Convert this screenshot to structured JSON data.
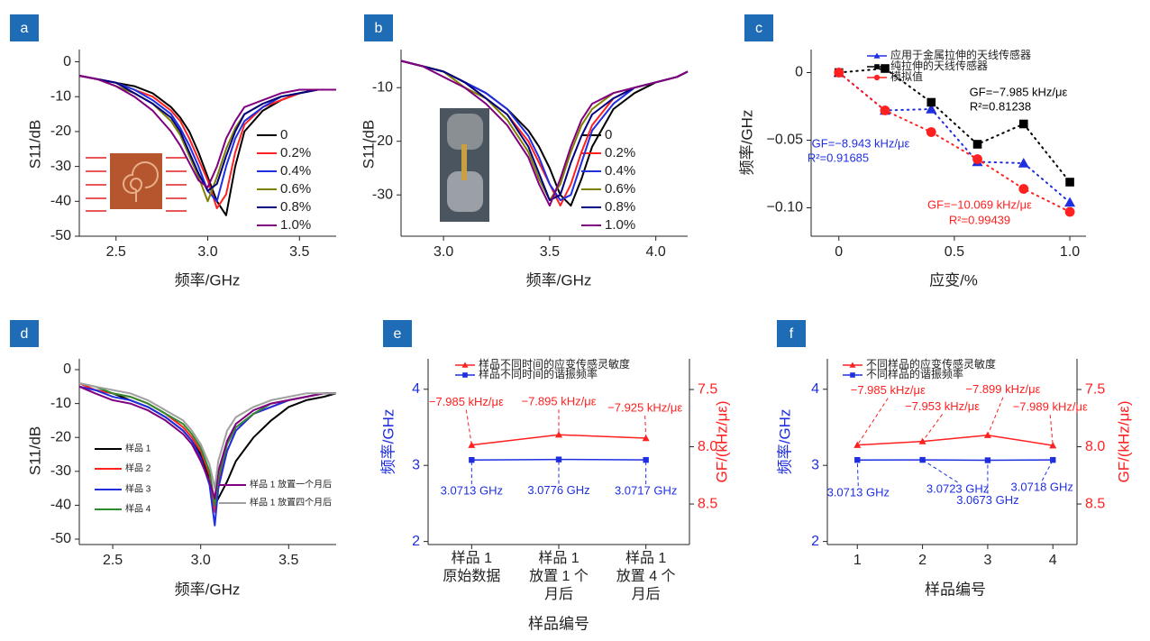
{
  "chart_data": [
    {
      "type": "line",
      "label": "a",
      "xlabel": "频率/GHz",
      "ylabel": "S11/dB",
      "x": [
        2.3,
        2.4,
        2.5,
        2.6,
        2.7,
        2.8,
        2.85,
        2.9,
        2.95,
        3.0,
        3.05,
        3.1,
        3.15,
        3.2,
        3.3,
        3.4,
        3.5,
        3.6,
        3.7
      ],
      "xlim": [
        2.3,
        3.7
      ],
      "ylim": [
        -50,
        3.5
      ],
      "xticks": [
        2.5,
        {
          "value": 3,
          "label": "3.0"
        },
        3.5
      ],
      "yticks": [
        0,
        -10,
        -20,
        -30,
        -40,
        -50
      ],
      "series": [
        {
          "name": "0",
          "color": "#000000",
          "values": [
            -4,
            -5,
            -6,
            -7,
            -9,
            -13,
            -16,
            -20,
            -26,
            -33,
            -40,
            -44,
            -30,
            -20,
            -14,
            -11,
            -9,
            -8,
            -8
          ]
        },
        {
          "name": "0.2%",
          "color": "#ff2020",
          "values": [
            -4,
            -5,
            -6,
            -8,
            -10,
            -14,
            -17,
            -22,
            -28,
            -34,
            -42,
            -38,
            -26,
            -18,
            -13,
            -11,
            -9,
            -8,
            -8
          ]
        },
        {
          "name": "0.4%",
          "color": "#1f2fe0",
          "values": [
            -4,
            -5,
            -6,
            -8,
            -11,
            -15,
            -19,
            -24,
            -30,
            -37,
            -40,
            -30,
            -22,
            -17,
            -13,
            -10,
            -9,
            -8,
            -8
          ]
        },
        {
          "name": "0.6%",
          "color": "#808000",
          "values": [
            -4,
            -5,
            -7,
            -9,
            -12,
            -17,
            -21,
            -27,
            -33,
            -40,
            -33,
            -25,
            -19,
            -15,
            -12,
            -10,
            -9,
            -8,
            -8
          ]
        },
        {
          "name": "0.8%",
          "color": "#000080",
          "values": [
            -4,
            -5,
            -6,
            -9,
            -12,
            -16,
            -20,
            -26,
            -32,
            -37,
            -35,
            -27,
            -20,
            -15,
            -12,
            -10,
            -9,
            -8,
            -8
          ]
        },
        {
          "name": "1.0%",
          "color": "#800080",
          "values": [
            -4,
            -5,
            -7,
            -10,
            -14,
            -20,
            -24,
            -29,
            -34,
            -36,
            -30,
            -22,
            -17,
            -13,
            -11,
            -9,
            -8,
            -8,
            -8
          ]
        }
      ]
    },
    {
      "type": "line",
      "label": "b",
      "xlabel": "频率/GHz",
      "ylabel": "S11/dB",
      "x": [
        2.8,
        2.9,
        3.0,
        3.1,
        3.2,
        3.3,
        3.4,
        3.45,
        3.5,
        3.55,
        3.6,
        3.65,
        3.7,
        3.8,
        3.9,
        4.0,
        4.1,
        4.15
      ],
      "xlim": [
        2.8,
        4.15
      ],
      "ylim": [
        -37.7,
        -2.9
      ],
      "xticks": [
        {
          "value": 3,
          "label": "3.0"
        },
        3.5,
        {
          "value": 4,
          "label": "4.0"
        }
      ],
      "yticks": [
        -10,
        -20,
        -30
      ],
      "series": [
        {
          "name": "0",
          "color": "#000000",
          "values": [
            -5,
            -6,
            -7,
            -9,
            -11,
            -14,
            -18,
            -21,
            -25,
            -30,
            -32,
            -27,
            -21,
            -14,
            -11,
            -9,
            -8,
            -7
          ]
        },
        {
          "name": "0.2%",
          "color": "#ff2020",
          "values": [
            -5,
            -6,
            -7,
            -9,
            -12,
            -15,
            -20,
            -24,
            -28,
            -32,
            -28,
            -22,
            -17,
            -12,
            -10,
            -9,
            -8,
            -7
          ]
        },
        {
          "name": "0.4%",
          "color": "#1f2fe0",
          "values": [
            -5,
            -6,
            -7,
            -9,
            -11,
            -14,
            -19,
            -23,
            -28,
            -31,
            -30,
            -24,
            -18,
            -13,
            -10,
            -9,
            -8,
            -7
          ]
        },
        {
          "name": "0.6%",
          "color": "#808000",
          "values": [
            -5,
            -6,
            -7,
            -10,
            -12,
            -16,
            -22,
            -27,
            -31,
            -28,
            -22,
            -17,
            -14,
            -11,
            -10,
            -9,
            -8,
            -7
          ]
        },
        {
          "name": "0.8%",
          "color": "#000080",
          "values": [
            -5,
            -6,
            -7,
            -9,
            -12,
            -15,
            -21,
            -26,
            -31,
            -30,
            -24,
            -19,
            -15,
            -12,
            -10,
            -9,
            -8,
            -7
          ]
        },
        {
          "name": "1.0%",
          "color": "#800080",
          "values": [
            -5,
            -6,
            -8,
            -10,
            -13,
            -17,
            -23,
            -28,
            -32,
            -27,
            -21,
            -16,
            -13,
            -11,
            -10,
            -9,
            -8,
            -7
          ]
        }
      ]
    },
    {
      "type": "scatter",
      "label": "c",
      "xlabel": "应变/%",
      "ylabel": "频率/GHz",
      "x": [
        0,
        0.2,
        0.4,
        0.6,
        0.8,
        1.0
      ],
      "xlim": [
        -0.12,
        1.07
      ],
      "ylim": [
        -0.121,
        0.017
      ],
      "xticks": [
        0,
        0.5,
        {
          "value": 1,
          "label": "1.0"
        }
      ],
      "yticks": [
        0,
        {
          "value": -0.05,
          "label": "−0.05"
        },
        {
          "value": -0.1,
          "label": "−0.10"
        }
      ],
      "series": [
        {
          "name": "应用于金属拉伸的天线传感器",
          "color": "#1f2fe0",
          "marker": "triangle",
          "linestyle": "dotted",
          "values": [
            0,
            -0.028,
            -0.027,
            -0.066,
            -0.067,
            -0.096
          ]
        },
        {
          "name": "纯拉伸的天线传感器",
          "color": "#000000",
          "marker": "square",
          "linestyle": "dotted",
          "values": [
            0,
            0.003,
            -0.022,
            -0.053,
            -0.038,
            -0.081
          ]
        },
        {
          "name": "模拟值",
          "color": "#ff2020",
          "marker": "circle",
          "linestyle": "dotted",
          "values": [
            0,
            -0.028,
            -0.044,
            -0.064,
            -0.086,
            -0.103
          ]
        }
      ],
      "annotations": [
        {
          "text": "GF=−7.985 kHz/με",
          "color": "#000000"
        },
        {
          "text": "R²=0.81238",
          "color": "#000000"
        },
        {
          "text": "GF=−8.943 kHz/με",
          "color": "#1f2fe0"
        },
        {
          "text": "R²=0.91685",
          "color": "#1f2fe0"
        },
        {
          "text": "GF=−10.069 kHz/με",
          "color": "#ff2020"
        },
        {
          "text": "R²=0.99439",
          "color": "#ff2020"
        }
      ]
    },
    {
      "type": "line",
      "label": "d",
      "xlabel": "频率/GHz",
      "ylabel": "S11/dB",
      "x": [
        2.31,
        2.4,
        2.5,
        2.6,
        2.7,
        2.8,
        2.9,
        2.95,
        3.0,
        3.05,
        3.08,
        3.1,
        3.15,
        3.2,
        3.3,
        3.4,
        3.5,
        3.6,
        3.7,
        3.77
      ],
      "xlim": [
        2.31,
        3.77
      ],
      "ylim": [
        -51.6,
        3.2
      ],
      "xticks": [
        2.5,
        {
          "value": 3,
          "label": "3.0"
        },
        3.5
      ],
      "yticks": [
        0,
        -10,
        -20,
        -30,
        -40,
        -50
      ],
      "series": [
        {
          "name": "样品 1",
          "color": "#000000",
          "values": [
            -5,
            -6,
            -7,
            -9,
            -11,
            -14,
            -18,
            -21,
            -25,
            -32,
            -40,
            -38,
            -33,
            -27,
            -20,
            -15,
            -11,
            -9,
            -8,
            -7
          ]
        },
        {
          "name": "样品 2",
          "color": "#ff2020",
          "values": [
            -4,
            -6,
            -7,
            -8,
            -10,
            -13,
            -17,
            -20,
            -24,
            -31,
            -42,
            -33,
            -24,
            -18,
            -13,
            -11,
            -9,
            -8,
            -7,
            -7
          ]
        },
        {
          "name": "样品 3",
          "color": "#1f2fe0",
          "values": [
            -5,
            -6,
            -8,
            -9,
            -11,
            -14,
            -18,
            -21,
            -26,
            -34,
            -46,
            -35,
            -24,
            -18,
            -13,
            -11,
            -9,
            -8,
            -7,
            -7
          ]
        },
        {
          "name": "样品 4",
          "color": "#2e8b2e",
          "values": [
            -4,
            -5,
            -7,
            -8,
            -10,
            -13,
            -16,
            -19,
            -23,
            -30,
            -40,
            -32,
            -22,
            -17,
            -13,
            -10,
            -9,
            -8,
            -7,
            -7
          ]
        },
        {
          "name": "样品 1 放置一个月后",
          "color": "#800080",
          "values": [
            -5,
            -7,
            -9,
            -10,
            -12,
            -15,
            -19,
            -22,
            -27,
            -33,
            -38,
            -30,
            -21,
            -16,
            -12,
            -10,
            -9,
            -8,
            -7,
            -7
          ]
        },
        {
          "name": "样品 1 放置四个月后",
          "color": "#a0a0a0",
          "values": [
            -4,
            -5,
            -6,
            -7,
            -9,
            -12,
            -15,
            -18,
            -22,
            -28,
            -35,
            -27,
            -18,
            -14,
            -11,
            -9,
            -8,
            -7,
            -7,
            -7
          ]
        }
      ]
    },
    {
      "type": "line",
      "label": "e",
      "xlabel": "样品编号",
      "ylabel": "频率/GHz",
      "y2label": "GF/(kHz/με)",
      "ycolor": "#1f2fe0",
      "y2color": "#ff2020",
      "categories": [
        "样品 1\n原始数据",
        "样品 1\n放置 1 个\n月后",
        "样品 1\n放置 4 个\n月后"
      ],
      "ylim": [
        1.96,
        4.4
      ],
      "yticks": [
        2,
        3,
        4
      ],
      "y2lim": [
        8.854,
        7.232
      ],
      "y2ticks": [
        7.5,
        {
          "value": 8,
          "label": "8.0"
        },
        8.5
      ],
      "series": [
        {
          "name": "样品不同时间的应变传感灵敏度",
          "color": "#ff2020",
          "marker": "triangle",
          "axis": "y2",
          "values": [
            7.985,
            7.895,
            7.925
          ],
          "value_labels": [
            "−7.985 kHz/με",
            "−7.895 kHz/με",
            "−7.925 kHz/με"
          ]
        },
        {
          "name": "样品不同时间的谐振频率",
          "color": "#1f2fe0",
          "marker": "square",
          "values": [
            3.0713,
            3.0776,
            3.0717
          ],
          "value_labels": [
            "3.0713 GHz",
            "3.0776 GHz",
            "3.0717 GHz"
          ]
        }
      ]
    },
    {
      "type": "line",
      "label": "f",
      "xlabel": "样品编号",
      "ylabel": "频率/GHz",
      "y2label": "GF/(kHz/με)",
      "ycolor": "#1f2fe0",
      "y2color": "#ff2020",
      "x": [
        1,
        2,
        3,
        4
      ],
      "xlim": [
        0.54,
        4.37
      ],
      "xticks": [
        1,
        2,
        3,
        4
      ],
      "ylim": [
        1.96,
        4.4
      ],
      "yticks": [
        2,
        3,
        4
      ],
      "y2lim": [
        8.854,
        7.232
      ],
      "y2ticks": [
        7.5,
        {
          "value": 8,
          "label": "8.0"
        },
        8.5
      ],
      "series": [
        {
          "name": "不同样品的应变传感灵敏度",
          "color": "#ff2020",
          "marker": "triangle",
          "axis": "y2",
          "values": [
            7.985,
            7.953,
            7.899,
            7.989
          ],
          "value_labels": [
            "−7.985 kHz/με",
            "−7.953 kHz/με",
            "−7.899 kHz/με",
            "−7.989 kHz/με"
          ]
        },
        {
          "name": "不同样品的谐振频率",
          "color": "#1f2fe0",
          "marker": "square",
          "values": [
            3.0713,
            3.0723,
            3.0673,
            3.0718
          ],
          "value_labels": [
            "3.0713 GHz",
            "3.0723 GHz",
            "3.0673 GHz",
            "3.0718 GHz"
          ]
        }
      ]
    }
  ]
}
